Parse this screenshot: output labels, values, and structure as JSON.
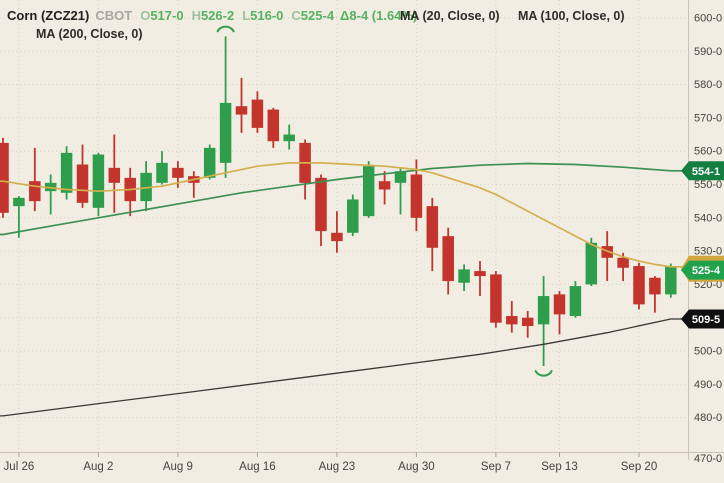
{
  "header": {
    "symbol": "Corn (ZCZ21)",
    "exchange": "CBOT",
    "o_label": "O",
    "o_value": "517-0",
    "h_label": "H",
    "h_value": "526-2",
    "l_label": "L",
    "l_value": "516-0",
    "c_label": "C",
    "c_value": "525-4",
    "change": "Δ8-4 (1.64%)"
  },
  "legend": {
    "ma20": "MA (20, Close, 0)",
    "ma100": "MA (100, Close, 0)",
    "ma200": "MA (200, Close, 0)"
  },
  "colors": {
    "background": "#f1ede3",
    "grid": "#d8d3c5",
    "axis_border": "#c9c4b5",
    "axis_text": "#45433d",
    "up": "#2f9e4c",
    "down": "#c2342c",
    "ma20_line": "#d4af4e",
    "ma100_line": "#3c9155",
    "ma200_line": "#3a3a35",
    "badge_ma100_bg": "#157f41",
    "badge_last_bg": "#1fa24b",
    "badge_ma20_bg": "#d2a73e",
    "badge_ma200_bg": "#101010",
    "badge_text": "#ffffff",
    "annotation": "#2f9e4c"
  },
  "chart_data": {
    "type": "candlestick",
    "title": "Corn (ZCZ21) CBOT daily candlestick chart with 20/100/200-day moving averages",
    "y_axis": {
      "max": 600,
      "min": 470,
      "step": 10,
      "labels": [
        "600-0",
        "590-0",
        "580-0",
        "570-0",
        "560-0",
        "550-0",
        "540-0",
        "530-0",
        "520-0",
        "510-0",
        "500-0",
        "490-0",
        "480-0",
        "470-0"
      ]
    },
    "x_ticks": [
      {
        "label": "Jul 26",
        "index": 1
      },
      {
        "label": "Aug 2",
        "index": 6
      },
      {
        "label": "Aug 9",
        "index": 11
      },
      {
        "label": "Aug 16",
        "index": 16
      },
      {
        "label": "Aug 23",
        "index": 21
      },
      {
        "label": "Aug 30",
        "index": 26
      },
      {
        "label": "Sep 7",
        "index": 31
      },
      {
        "label": "Sep 13",
        "index": 35
      },
      {
        "label": "Sep 20",
        "index": 40
      }
    ],
    "candles": [
      [
        "Jul 23",
        562.5,
        564.0,
        540.0,
        541.5
      ],
      [
        "Jul 26",
        543.5,
        546.5,
        534.0,
        546.0
      ],
      [
        "Jul 27",
        551.0,
        561.0,
        542.0,
        545.0
      ],
      [
        "Jul 28",
        548.0,
        553.0,
        541.0,
        550.5
      ],
      [
        "Jul 29",
        547.5,
        561.5,
        545.5,
        559.5
      ],
      [
        "Jul 30",
        556.0,
        562.0,
        543.0,
        544.5
      ],
      [
        "Aug 2",
        543.0,
        559.5,
        540.5,
        559.0
      ],
      [
        "Aug 3",
        555.0,
        565.0,
        541.5,
        550.5
      ],
      [
        "Aug 4",
        552.0,
        555.0,
        540.5,
        545.0
      ],
      [
        "Aug 5",
        545.0,
        557.0,
        542.0,
        553.5
      ],
      [
        "Aug 6",
        550.5,
        560.0,
        550.0,
        556.5
      ],
      [
        "Aug 9",
        555.0,
        557.0,
        549.0,
        552.0
      ],
      [
        "Aug 10",
        552.5,
        554.0,
        546.0,
        550.5
      ],
      [
        "Aug 11",
        552.0,
        562.0,
        551.5,
        561.0
      ],
      [
        "Aug 12",
        556.5,
        594.5,
        552.0,
        574.5
      ],
      [
        "Aug 13",
        573.5,
        582.0,
        565.5,
        571.0
      ],
      [
        "Aug 16",
        575.5,
        578.0,
        565.5,
        567.0
      ],
      [
        "Aug 17",
        572.5,
        573.0,
        561.0,
        563.0
      ],
      [
        "Aug 18",
        563.0,
        568.0,
        560.5,
        565.0
      ],
      [
        "Aug 19",
        562.5,
        563.5,
        545.5,
        550.5
      ],
      [
        "Aug 20",
        552.0,
        553.0,
        531.5,
        536.0
      ],
      [
        "Aug 23",
        535.5,
        542.0,
        529.5,
        533.0
      ],
      [
        "Aug 24",
        535.5,
        547.0,
        534.5,
        545.5
      ],
      [
        "Aug 25",
        540.5,
        557.0,
        540.0,
        555.5
      ],
      [
        "Aug 26",
        551.0,
        554.0,
        544.0,
        548.5
      ],
      [
        "Aug 27",
        550.5,
        555.0,
        541.0,
        554.0
      ],
      [
        "Aug 30",
        553.0,
        557.5,
        536.0,
        540.0
      ],
      [
        "Aug 31",
        543.5,
        546.0,
        524.0,
        531.0
      ],
      [
        "Sep 1",
        534.5,
        537.0,
        517.0,
        521.0
      ],
      [
        "Sep 2",
        520.5,
        526.0,
        518.0,
        524.5
      ],
      [
        "Sep 3",
        524.0,
        527.0,
        516.5,
        522.5
      ],
      [
        "Sep 7",
        523.0,
        524.0,
        507.0,
        508.5
      ],
      [
        "Sep 8",
        510.5,
        515.0,
        505.5,
        508.0
      ],
      [
        "Sep 9",
        510.0,
        512.0,
        504.0,
        507.5
      ],
      [
        "Sep 10",
        508.0,
        522.5,
        495.5,
        516.5
      ],
      [
        "Sep 13",
        517.0,
        518.0,
        505.0,
        511.0
      ],
      [
        "Sep 14",
        510.5,
        521.0,
        510.0,
        519.5
      ],
      [
        "Sep 15",
        520.0,
        534.0,
        519.5,
        532.5
      ],
      [
        "Sep 16",
        531.5,
        536.0,
        521.0,
        528.0
      ],
      [
        "Sep 17",
        528.0,
        529.5,
        521.0,
        525.0
      ],
      [
        "Sep 20",
        525.5,
        526.5,
        512.5,
        514.0
      ],
      [
        "Sep 21",
        522.0,
        522.5,
        511.5,
        517.0
      ],
      [
        "Sep 22",
        517.0,
        526.25,
        516.0,
        525.5
      ]
    ],
    "ma20": [
      [
        0,
        551
      ],
      [
        2,
        549.5
      ],
      [
        4,
        548.5
      ],
      [
        6,
        548
      ],
      [
        8,
        548.5
      ],
      [
        10,
        549.5
      ],
      [
        12,
        551.5
      ],
      [
        14,
        553.5
      ],
      [
        16,
        555.5
      ],
      [
        18,
        556.5
      ],
      [
        20,
        556.5
      ],
      [
        22,
        556
      ],
      [
        24,
        555.5
      ],
      [
        26,
        554.5
      ],
      [
        27,
        553.5
      ],
      [
        28,
        552
      ],
      [
        29,
        550.5
      ],
      [
        30,
        549
      ],
      [
        31,
        547
      ],
      [
        32,
        544.5
      ],
      [
        33,
        542
      ],
      [
        34,
        539.5
      ],
      [
        35,
        537
      ],
      [
        36,
        534.5
      ],
      [
        37,
        532
      ],
      [
        38,
        530
      ],
      [
        39,
        528.3
      ],
      [
        40,
        527
      ],
      [
        41,
        526
      ],
      [
        42,
        525.3
      ]
    ],
    "ma100": [
      [
        0,
        535
      ],
      [
        3,
        537.5
      ],
      [
        6,
        540
      ],
      [
        9,
        542.5
      ],
      [
        12,
        545
      ],
      [
        15,
        547.5
      ],
      [
        18,
        549.5
      ],
      [
        21,
        551.5
      ],
      [
        24,
        553.2
      ],
      [
        27,
        554.8
      ],
      [
        30,
        555.8
      ],
      [
        33,
        556.3
      ],
      [
        36,
        556
      ],
      [
        39,
        555.2
      ],
      [
        42,
        554.1
      ]
    ],
    "ma200": [
      [
        0,
        480.5
      ],
      [
        6,
        484.2
      ],
      [
        12,
        487.8
      ],
      [
        18,
        491.5
      ],
      [
        24,
        495.2
      ],
      [
        30,
        499
      ],
      [
        34,
        502
      ],
      [
        38,
        505.5
      ],
      [
        42,
        509.6
      ]
    ],
    "badges": [
      {
        "text": "554-1",
        "value": 554.125,
        "kind": "ma100"
      },
      {
        "text": "",
        "value": 525.3,
        "kind": "ma20"
      },
      {
        "text": "525-4",
        "value": 525.5,
        "kind": "last"
      },
      {
        "text": "509-5",
        "value": 509.625,
        "kind": "ma200"
      }
    ],
    "annotations": [
      {
        "shape": "arc-over",
        "index": 14,
        "price": 594.5
      },
      {
        "shape": "arc-under",
        "index": 34,
        "price": 495.5
      }
    ],
    "legend_position": "top",
    "grid": "dotted"
  }
}
